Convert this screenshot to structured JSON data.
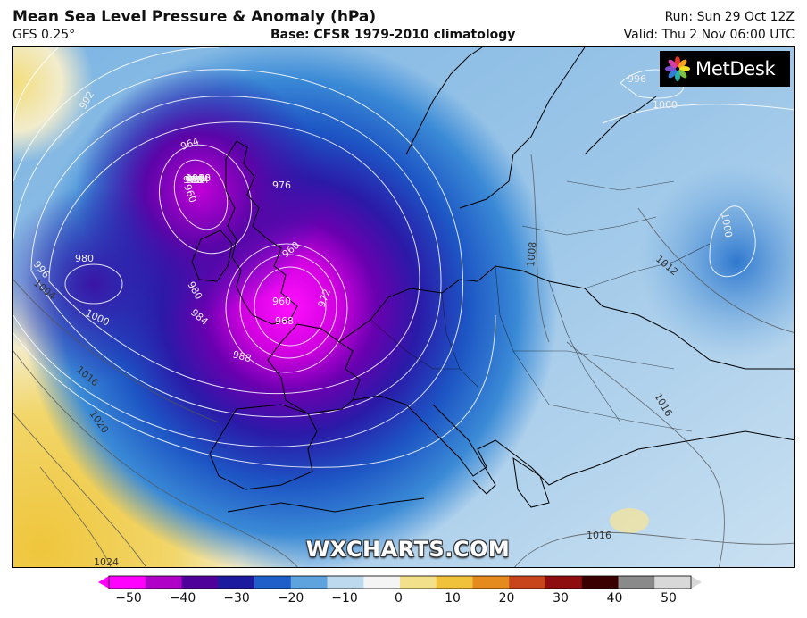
{
  "header": {
    "title": "Mean Sea Level Pressure & Anomaly (hPa)",
    "model": "GFS 0.25°",
    "base": "Base: CFSR 1979-2010 climatology",
    "run": "Run: Sun 29 Oct 12Z",
    "valid": "Valid: Thu 2 Nov 06:00 UTC"
  },
  "branding": {
    "logo_text": "MetDesk",
    "watermark": "WXCHARTS.COM"
  },
  "isobar_labels": [
    "964",
    "968",
    "972",
    "976",
    "980",
    "984",
    "988",
    "992",
    "996",
    "1000",
    "1004",
    "1008",
    "1012",
    "1016",
    "1020",
    "1024",
    "960",
    "956",
    "1000",
    "996",
    "1016"
  ],
  "colorbar": {
    "ticks": [
      "−50",
      "−40",
      "−30",
      "−20",
      "−10",
      "0",
      "10",
      "20",
      "30",
      "40",
      "50"
    ],
    "colors": [
      "#ff00ff",
      "#b000c8",
      "#50009a",
      "#1c1a9e",
      "#1f5fc9",
      "#5ea3dd",
      "#bcd9ee",
      "#f4f4f4",
      "#f3e08a",
      "#f0c23c",
      "#e58a1c",
      "#c8441a",
      "#8e0e10",
      "#3a0000",
      "#8a8a8a",
      "#d8d8d8"
    ]
  }
}
